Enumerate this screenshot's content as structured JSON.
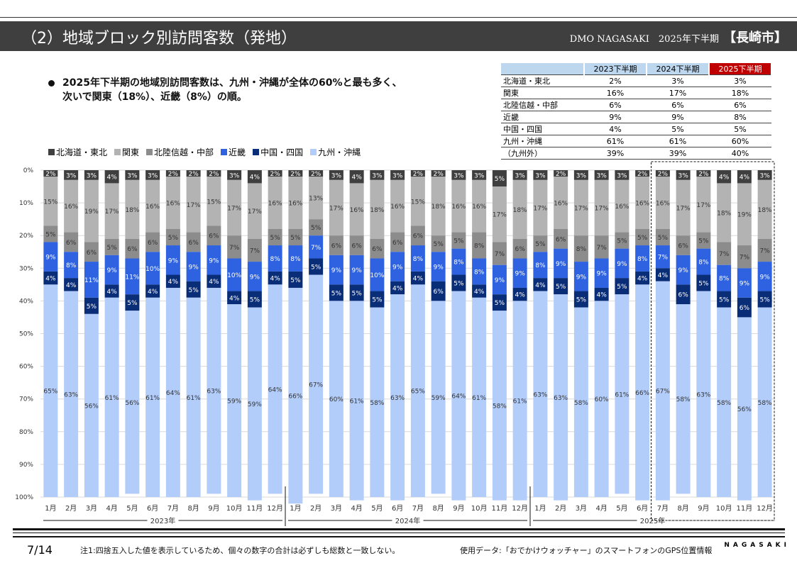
{
  "header": {
    "title": "（2）地域ブロック別訪問客数（発地）",
    "org": "DMO NAGASAKI　2025年下半期",
    "city": "【長崎市】"
  },
  "summary": {
    "line1": "2025年下半期の地域別訪問客数は、九州・沖縄が全体の60%と最も多く、",
    "line2": "次いで関東（18%）、近畿（8%）の順。"
  },
  "table": {
    "headers": [
      "2023下半期",
      "2024下半期",
      "2025下半期"
    ],
    "rows": [
      {
        "label": "北海道・東北",
        "values": [
          "2%",
          "3%",
          "3%"
        ]
      },
      {
        "label": "関東",
        "values": [
          "16%",
          "17%",
          "18%"
        ]
      },
      {
        "label": "北陸信越・中部",
        "values": [
          "6%",
          "6%",
          "6%"
        ]
      },
      {
        "label": "近畿",
        "values": [
          "9%",
          "9%",
          "8%"
        ]
      },
      {
        "label": "中国・四国",
        "values": [
          "4%",
          "5%",
          "5%"
        ]
      },
      {
        "label": "九州・沖縄",
        "values": [
          "61%",
          "61%",
          "60%"
        ]
      },
      {
        "label": "（九州外）",
        "values": [
          "39%",
          "39%",
          "40%"
        ]
      }
    ]
  },
  "chart_data": {
    "type": "bar",
    "stacked": true,
    "orientation": "vertical",
    "y_inverted": true,
    "ylim": [
      0,
      100
    ],
    "yticks": [
      "0%",
      "10%",
      "20%",
      "30%",
      "40%",
      "50%",
      "60%",
      "70%",
      "80%",
      "90%",
      "100%"
    ],
    "grid": true,
    "legend_position": "top-left",
    "categories": [
      "1月",
      "2月",
      "3月",
      "4月",
      "5月",
      "6月",
      "7月",
      "8月",
      "9月",
      "10月",
      "11月",
      "12月",
      "1月",
      "2月",
      "3月",
      "4月",
      "5月",
      "6月",
      "7月",
      "8月",
      "9月",
      "10月",
      "11月",
      "12月",
      "1月",
      "2月",
      "3月",
      "4月",
      "5月",
      "6月",
      "7月",
      "8月",
      "9月",
      "10月",
      "11月",
      "12月"
    ],
    "year_groups": [
      "2023年",
      "2024年",
      "2025年"
    ],
    "series": [
      {
        "name": "北海道・東北",
        "color": "#3f3f3f",
        "values": [
          2,
          3,
          3,
          4,
          3,
          3,
          2,
          2,
          2,
          3,
          4,
          2,
          2,
          2,
          3,
          4,
          3,
          3,
          2,
          2,
          3,
          3,
          5,
          3,
          3,
          2,
          3,
          3,
          3,
          2,
          2,
          3,
          2,
          4,
          4,
          3
        ]
      },
      {
        "name": "関東",
        "color": "#b3b3b3",
        "values": [
          15,
          16,
          19,
          17,
          18,
          16,
          16,
          17,
          15,
          17,
          17,
          16,
          16,
          13,
          17,
          16,
          18,
          16,
          15,
          18,
          16,
          16,
          17,
          18,
          17,
          16,
          17,
          17,
          16,
          16,
          16,
          17,
          17,
          18,
          19,
          18
        ]
      },
      {
        "name": "北陸信越・中部",
        "color": "#8c8c8c",
        "values": [
          5,
          6,
          6,
          5,
          6,
          6,
          5,
          6,
          6,
          7,
          7,
          5,
          5,
          5,
          6,
          6,
          6,
          6,
          6,
          5,
          5,
          8,
          7,
          6,
          5,
          6,
          8,
          7,
          5,
          5,
          5,
          6,
          5,
          7,
          7,
          7
        ]
      },
      {
        "name": "近畿",
        "color": "#2e62e0",
        "values": [
          9,
          8,
          11,
          9,
          11,
          10,
          9,
          9,
          9,
          10,
          9,
          8,
          8,
          7,
          9,
          9,
          10,
          9,
          8,
          9,
          8,
          8,
          9,
          9,
          8,
          9,
          9,
          9,
          9,
          8,
          7,
          9,
          8,
          8,
          9,
          9
        ]
      },
      {
        "name": "中国・四国",
        "color": "#0a2d78",
        "values": [
          4,
          4,
          5,
          4,
          5,
          4,
          4,
          5,
          4,
          4,
          5,
          4,
          5,
          5,
          5,
          5,
          5,
          4,
          4,
          6,
          5,
          4,
          5,
          4,
          4,
          5,
          5,
          4,
          5,
          4,
          4,
          6,
          5,
          5,
          6,
          5
        ]
      },
      {
        "name": "九州・沖縄",
        "color": "#b3cdfa",
        "values": [
          65,
          63,
          56,
          61,
          56,
          61,
          64,
          61,
          63,
          59,
          59,
          64,
          66,
          67,
          60,
          61,
          58,
          63,
          65,
          59,
          64,
          61,
          58,
          61,
          63,
          63,
          58,
          60,
          61,
          66,
          67,
          58,
          63,
          58,
          56,
          58
        ]
      }
    ],
    "highlight_range": [
      "2025年7月",
      "2025年12月"
    ]
  },
  "footer": {
    "page": "7/14",
    "note": "注1:四捨五入した値を表示しているため、個々の数字の合計は必ずしも総数と一致しない。",
    "source": "使用データ:「おでかけウォッチャー」のスマートフォンのGPS位置情報",
    "logo": "NAGASAKI"
  }
}
